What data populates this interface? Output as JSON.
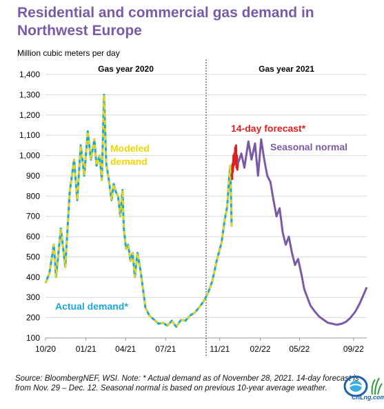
{
  "title": "Residential and commercial gas demand in Northwest Europe",
  "y_unit": "Million cubic meters per day",
  "source": "Source: BloombergNEF, WSI. Note: * Actual demand as of November 28, 2021. 14-day forecast is from Nov. 29 – Dec. 12. Seasonal normal is based on previous 10-year average weather.",
  "logo_text": "CnLng.com",
  "colors": {
    "title": "#7a5aa8",
    "actual": "#1aa7d9",
    "modeled": "#f4d500",
    "forecast": "#e02020",
    "seasonal": "#7a5aa8",
    "divider": "#333333",
    "grid": "#d9d9d9"
  },
  "chart_data": {
    "type": "line",
    "title": "Residential and commercial gas demand in Northwest Europe",
    "ylabel": "Million cubic meters per day",
    "ylim": [
      100,
      1400
    ],
    "yticks": [
      100,
      200,
      300,
      400,
      500,
      600,
      700,
      800,
      900,
      1000,
      1100,
      1200,
      1300,
      1400
    ],
    "xlim": [
      "2020-10-01",
      "2022-10-01"
    ],
    "xticks": [
      {
        "date": "2020-10-01",
        "label": "10/20"
      },
      {
        "date": "2021-01-01",
        "label": "01/21"
      },
      {
        "date": "2021-04-01",
        "label": "04/21"
      },
      {
        "date": "2021-07-01",
        "label": "07/21"
      },
      {
        "date": "2021-11-01",
        "label": "11/21"
      },
      {
        "date": "2022-02-01",
        "label": "02/22"
      },
      {
        "date": "2022-05-01",
        "label": "05/22"
      },
      {
        "date": "2022-09-01",
        "label": "09/22"
      }
    ],
    "gas_year_divider": "2021-10-01",
    "period_labels": [
      "Gas year 2020",
      "Gas year 2021"
    ],
    "grid": true,
    "series": [
      {
        "name": "Actual demand*",
        "color": "#1aa7d9",
        "dashed": false,
        "points": [
          [
            "2020-10-01",
            370
          ],
          [
            "2020-10-10",
            420
          ],
          [
            "2020-10-20",
            560
          ],
          [
            "2020-10-25",
            400
          ],
          [
            "2020-11-05",
            640
          ],
          [
            "2020-11-15",
            450
          ],
          [
            "2020-11-25",
            820
          ],
          [
            "2020-12-05",
            980
          ],
          [
            "2020-12-12",
            780
          ],
          [
            "2020-12-20",
            1050
          ],
          [
            "2020-12-28",
            900
          ],
          [
            "2021-01-05",
            1120
          ],
          [
            "2021-01-12",
            980
          ],
          [
            "2021-01-20",
            1080
          ],
          [
            "2021-01-25",
            950
          ],
          [
            "2021-02-01",
            1000
          ],
          [
            "2021-02-06",
            880
          ],
          [
            "2021-02-11",
            1300
          ],
          [
            "2021-02-16",
            960
          ],
          [
            "2021-02-22",
            880
          ],
          [
            "2021-02-28",
            780
          ],
          [
            "2021-03-05",
            860
          ],
          [
            "2021-03-10",
            820
          ],
          [
            "2021-03-15",
            800
          ],
          [
            "2021-03-20",
            700
          ],
          [
            "2021-03-25",
            830
          ],
          [
            "2021-03-28",
            640
          ],
          [
            "2021-04-02",
            540
          ],
          [
            "2021-04-07",
            560
          ],
          [
            "2021-04-12",
            480
          ],
          [
            "2021-04-17",
            520
          ],
          [
            "2021-04-22",
            400
          ],
          [
            "2021-04-28",
            520
          ],
          [
            "2021-05-05",
            430
          ],
          [
            "2021-05-10",
            350
          ],
          [
            "2021-05-16",
            250
          ],
          [
            "2021-05-25",
            210
          ],
          [
            "2021-06-05",
            190
          ],
          [
            "2021-06-15",
            170
          ],
          [
            "2021-06-25",
            175
          ],
          [
            "2021-07-05",
            160
          ],
          [
            "2021-07-15",
            185
          ],
          [
            "2021-07-25",
            155
          ],
          [
            "2021-08-05",
            190
          ],
          [
            "2021-08-15",
            185
          ],
          [
            "2021-08-25",
            210
          ],
          [
            "2021-09-05",
            225
          ],
          [
            "2021-09-15",
            250
          ],
          [
            "2021-09-25",
            280
          ],
          [
            "2021-10-05",
            320
          ],
          [
            "2021-10-15",
            380
          ],
          [
            "2021-10-25",
            480
          ],
          [
            "2021-11-05",
            570
          ],
          [
            "2021-11-12",
            680
          ],
          [
            "2021-11-18",
            750
          ],
          [
            "2021-11-22",
            880
          ],
          [
            "2021-11-25",
            950
          ],
          [
            "2021-11-28",
            650
          ]
        ]
      },
      {
        "name": "Modeled demand",
        "color": "#f4d500",
        "dashed": true,
        "points": [
          [
            "2020-10-01",
            370
          ],
          [
            "2020-10-10",
            420
          ],
          [
            "2020-10-20",
            560
          ],
          [
            "2020-10-25",
            400
          ],
          [
            "2020-11-05",
            640
          ],
          [
            "2020-11-15",
            450
          ],
          [
            "2020-11-25",
            820
          ],
          [
            "2020-12-05",
            980
          ],
          [
            "2020-12-12",
            780
          ],
          [
            "2020-12-20",
            1050
          ],
          [
            "2020-12-28",
            900
          ],
          [
            "2021-01-05",
            1120
          ],
          [
            "2021-01-12",
            980
          ],
          [
            "2021-01-20",
            1080
          ],
          [
            "2021-01-25",
            950
          ],
          [
            "2021-02-01",
            1000
          ],
          [
            "2021-02-06",
            880
          ],
          [
            "2021-02-11",
            1300
          ],
          [
            "2021-02-16",
            960
          ],
          [
            "2021-02-22",
            880
          ],
          [
            "2021-02-28",
            780
          ],
          [
            "2021-03-05",
            860
          ],
          [
            "2021-03-10",
            820
          ],
          [
            "2021-03-15",
            800
          ],
          [
            "2021-03-20",
            700
          ],
          [
            "2021-03-25",
            830
          ],
          [
            "2021-03-28",
            640
          ],
          [
            "2021-04-02",
            540
          ],
          [
            "2021-04-07",
            560
          ],
          [
            "2021-04-12",
            480
          ],
          [
            "2021-04-17",
            520
          ],
          [
            "2021-04-22",
            400
          ],
          [
            "2021-04-28",
            520
          ],
          [
            "2021-05-05",
            430
          ],
          [
            "2021-05-10",
            350
          ],
          [
            "2021-05-16",
            250
          ],
          [
            "2021-05-25",
            210
          ],
          [
            "2021-06-05",
            190
          ],
          [
            "2021-06-15",
            170
          ],
          [
            "2021-06-25",
            175
          ],
          [
            "2021-07-05",
            160
          ],
          [
            "2021-07-15",
            185
          ],
          [
            "2021-07-25",
            155
          ],
          [
            "2021-08-05",
            190
          ],
          [
            "2021-08-15",
            185
          ],
          [
            "2021-08-25",
            210
          ],
          [
            "2021-09-05",
            225
          ],
          [
            "2021-09-15",
            250
          ],
          [
            "2021-09-25",
            280
          ],
          [
            "2021-10-05",
            320
          ],
          [
            "2021-10-15",
            380
          ],
          [
            "2021-10-25",
            480
          ],
          [
            "2021-11-05",
            570
          ],
          [
            "2021-11-12",
            680
          ],
          [
            "2021-11-18",
            750
          ],
          [
            "2021-11-22",
            880
          ],
          [
            "2021-11-25",
            950
          ],
          [
            "2021-11-28",
            650
          ]
        ]
      },
      {
        "name": "14-day forecast*",
        "color": "#e02020",
        "dashed": false,
        "points": [
          [
            "2021-11-29",
            880
          ],
          [
            "2021-11-30",
            960
          ],
          [
            "2021-12-01",
            920
          ],
          [
            "2021-12-02",
            1000
          ],
          [
            "2021-12-03",
            950
          ],
          [
            "2021-12-04",
            1010
          ],
          [
            "2021-12-05",
            960
          ],
          [
            "2021-12-06",
            1040
          ],
          [
            "2021-12-07",
            980
          ],
          [
            "2021-12-08",
            1050
          ],
          [
            "2021-12-09",
            940
          ],
          [
            "2021-12-10",
            1000
          ],
          [
            "2021-12-11",
            930
          ],
          [
            "2021-12-12",
            960
          ]
        ]
      },
      {
        "name": "Seasonal normal",
        "color": "#7a5aa8",
        "dashed": false,
        "points": [
          [
            "2021-12-12",
            960
          ],
          [
            "2021-12-20",
            1010
          ],
          [
            "2021-12-27",
            940
          ],
          [
            "2022-01-05",
            1070
          ],
          [
            "2022-01-12",
            980
          ],
          [
            "2022-01-20",
            1060
          ],
          [
            "2022-01-27",
            900
          ],
          [
            "2022-02-03",
            1080
          ],
          [
            "2022-02-10",
            980
          ],
          [
            "2022-02-17",
            900
          ],
          [
            "2022-02-24",
            870
          ],
          [
            "2022-03-03",
            780
          ],
          [
            "2022-03-10",
            700
          ],
          [
            "2022-03-17",
            740
          ],
          [
            "2022-03-24",
            620
          ],
          [
            "2022-03-31",
            560
          ],
          [
            "2022-04-07",
            600
          ],
          [
            "2022-04-14",
            520
          ],
          [
            "2022-04-21",
            460
          ],
          [
            "2022-04-28",
            490
          ],
          [
            "2022-05-05",
            420
          ],
          [
            "2022-05-12",
            340
          ],
          [
            "2022-05-19",
            300
          ],
          [
            "2022-05-26",
            260
          ],
          [
            "2022-06-05",
            230
          ],
          [
            "2022-06-15",
            205
          ],
          [
            "2022-06-25",
            190
          ],
          [
            "2022-07-05",
            175
          ],
          [
            "2022-07-15",
            170
          ],
          [
            "2022-07-25",
            165
          ],
          [
            "2022-08-05",
            170
          ],
          [
            "2022-08-15",
            180
          ],
          [
            "2022-08-25",
            200
          ],
          [
            "2022-09-05",
            230
          ],
          [
            "2022-09-15",
            270
          ],
          [
            "2022-09-25",
            320
          ],
          [
            "2022-10-01",
            350
          ]
        ]
      }
    ],
    "annotations": [
      {
        "text": "Modeled demand",
        "color": "#f4d500"
      },
      {
        "text": "Actual demand*",
        "color": "#1aa7d9"
      },
      {
        "text": "14-day forecast*",
        "color": "#e02020"
      },
      {
        "text": "Seasonal normal",
        "color": "#7a5aa8"
      }
    ]
  }
}
